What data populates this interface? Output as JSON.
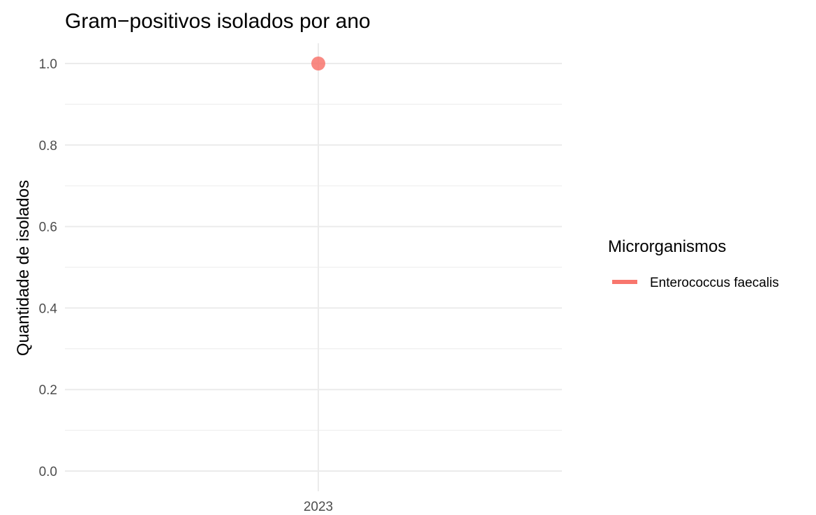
{
  "chart_data": {
    "type": "line",
    "title": "Gram−positivos isolados por ano",
    "xlabel": "",
    "ylabel": "Quantidade de isolados",
    "categories": [
      "2023"
    ],
    "x_tick_labels": [
      "2023"
    ],
    "ylim": [
      0,
      1
    ],
    "y_ticks": [
      0.0,
      0.2,
      0.4,
      0.6,
      0.8,
      1.0
    ],
    "y_tick_labels": [
      "0.0",
      "0.2",
      "0.4",
      "0.6",
      "0.8",
      "1.0"
    ],
    "grid": true,
    "series": [
      {
        "name": "Enterococcus faecalis",
        "color": "#f8766d",
        "points": [
          {
            "x": "2023",
            "y": 1
          }
        ]
      }
    ],
    "legend": {
      "title": "Microrganismos",
      "position": "right"
    }
  }
}
